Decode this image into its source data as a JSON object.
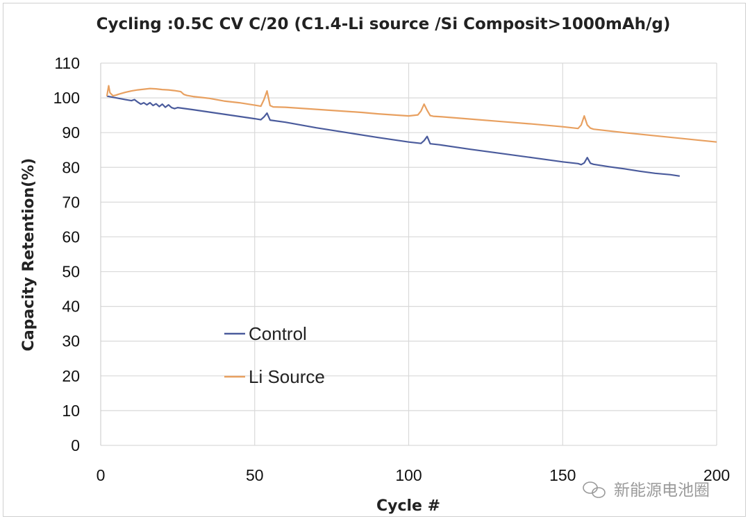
{
  "chart_data": {
    "type": "line",
    "title": "Cycling :0.5C CV C/20 (C1.4-Li source /Si Composit>1000mAh/g)",
    "xlabel": "Cycle #",
    "ylabel": "Capacity Retention(%)",
    "xlim": [
      0,
      200
    ],
    "ylim": [
      0,
      110
    ],
    "xticks": [
      0,
      50,
      100,
      150,
      200
    ],
    "yticks": [
      0,
      10,
      20,
      30,
      40,
      50,
      60,
      70,
      80,
      90,
      100,
      110
    ],
    "grid": true,
    "legend_position": "center-left",
    "series": [
      {
        "name": "Control",
        "color": "#4a5b9c",
        "x": [
          2,
          5,
          8,
          10,
          11,
          12,
          13,
          14,
          15,
          16,
          17,
          18,
          19,
          20,
          21,
          22,
          23,
          24,
          25,
          30,
          40,
          50,
          52,
          53,
          54,
          55,
          60,
          70,
          80,
          90,
          100,
          104,
          105,
          106,
          107,
          110,
          120,
          130,
          140,
          150,
          155,
          156,
          157,
          158,
          159,
          160,
          165,
          170,
          175,
          180,
          185,
          188
        ],
        "y": [
          100.5,
          100,
          99.5,
          99.2,
          99.5,
          98.8,
          98.2,
          98.6,
          98,
          98.6,
          97.8,
          98.3,
          97.5,
          98.2,
          97.3,
          98,
          97.2,
          96.9,
          97.2,
          96.6,
          95.3,
          94,
          93.7,
          94.5,
          95.6,
          93.6,
          93,
          91.4,
          90,
          88.6,
          87.3,
          86.9,
          87.7,
          88.9,
          86.8,
          86.5,
          85.2,
          84,
          82.8,
          81.6,
          81.1,
          80.8,
          81.3,
          82.8,
          81.2,
          80.9,
          80.2,
          79.6,
          78.9,
          78.3,
          77.9,
          77.5
        ]
      },
      {
        "name": "Li Source",
        "color": "#e8a060",
        "x": [
          2,
          2.6,
          3,
          4,
          5,
          6,
          8,
          10,
          12,
          14,
          16,
          18,
          20,
          22,
          24,
          26,
          27,
          28,
          30,
          35,
          40,
          45,
          50,
          52,
          53,
          54,
          55,
          56,
          60,
          65,
          70,
          75,
          80,
          85,
          90,
          95,
          100,
          103,
          104,
          105,
          106,
          107,
          108,
          110,
          120,
          130,
          140,
          150,
          153,
          155,
          156,
          157,
          158,
          159,
          160,
          165,
          170,
          180,
          190,
          200
        ],
        "y": [
          100.5,
          103.5,
          101.5,
          100.6,
          100.8,
          101.1,
          101.6,
          102,
          102.3,
          102.5,
          102.7,
          102.6,
          102.4,
          102.3,
          102.1,
          101.8,
          101,
          100.7,
          100.4,
          99.9,
          99.1,
          98.6,
          97.9,
          97.6,
          99.5,
          102,
          97.8,
          97.4,
          97.3,
          97,
          96.7,
          96.4,
          96.1,
          95.8,
          95.4,
          95.1,
          94.8,
          95.1,
          96.2,
          98.2,
          96.4,
          94.9,
          94.7,
          94.6,
          93.9,
          93.2,
          92.5,
          91.7,
          91.4,
          91.2,
          92.2,
          94.8,
          92.2,
          91.3,
          91,
          90.5,
          90,
          89.1,
          88.2,
          87.3
        ]
      }
    ],
    "watermark": "新能源电池圈"
  }
}
